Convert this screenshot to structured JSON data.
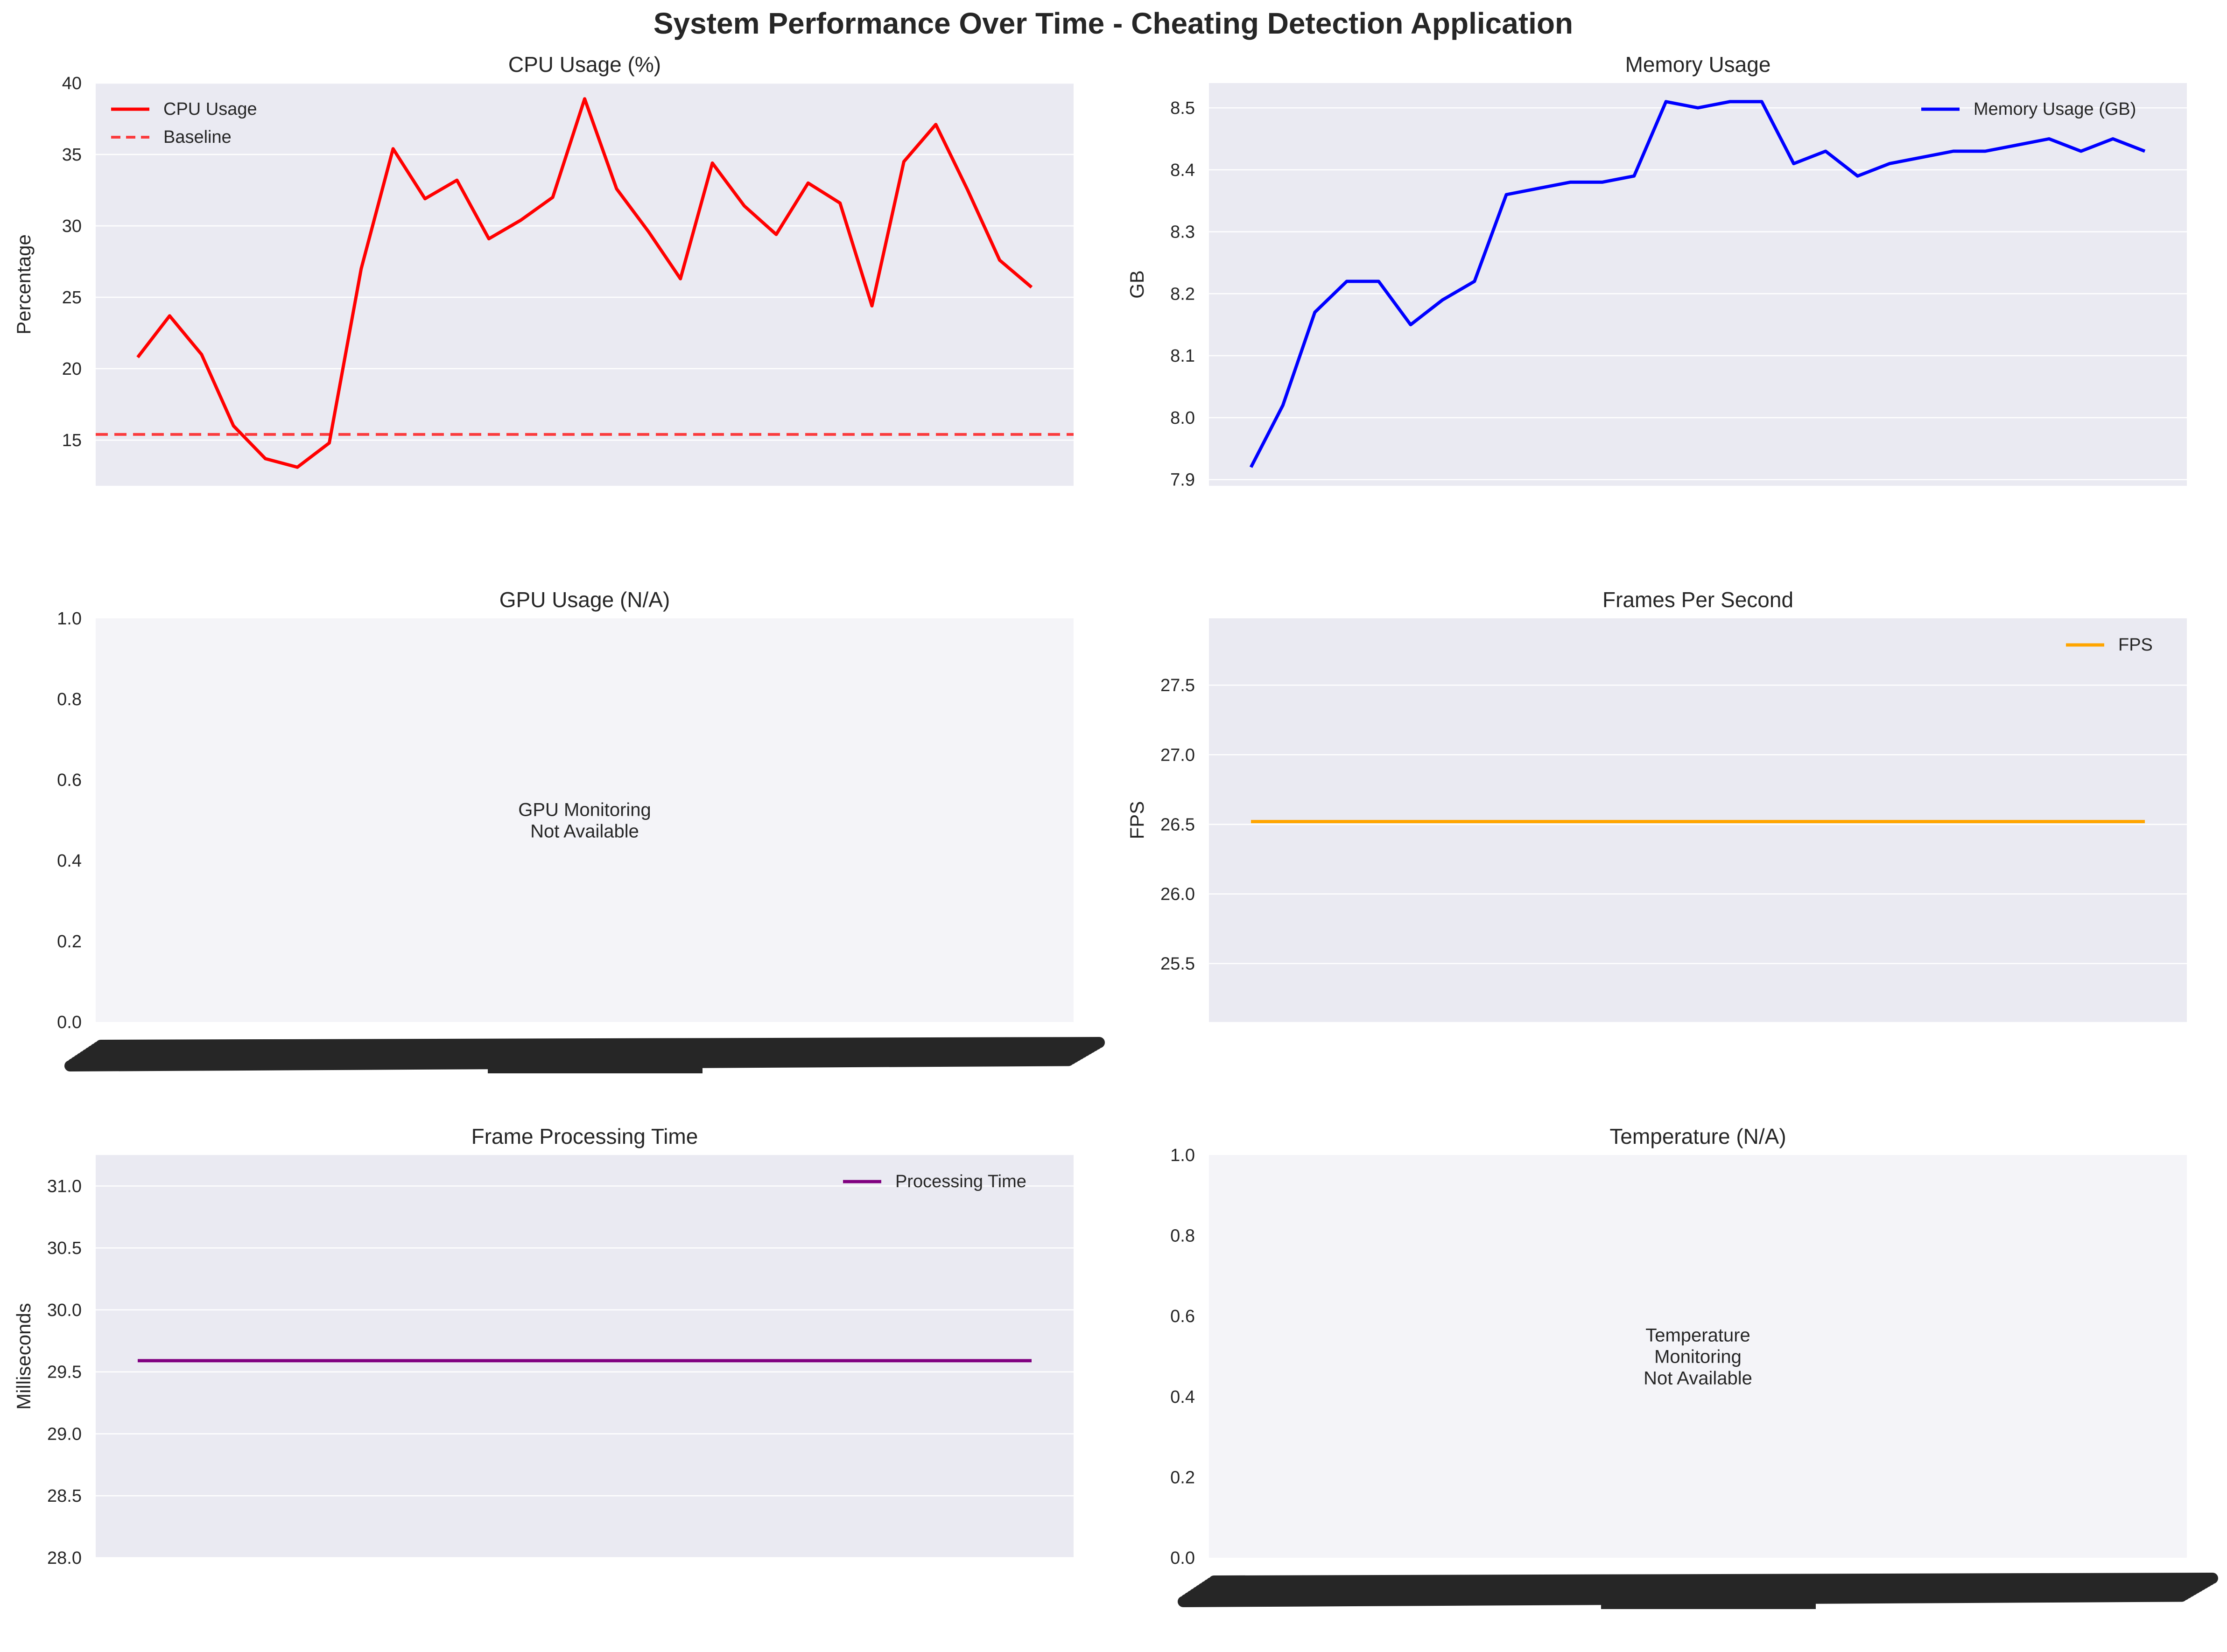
{
  "figure": {
    "title": "System Performance Over Time - Cheating Detection Application",
    "colors": {
      "axes_bg": "#eaeaf2",
      "na_bg": "#f4f4f8",
      "grid": "#ffffff",
      "scribble": "#262626"
    }
  },
  "chart_data": [
    {
      "id": "cpu",
      "type": "line",
      "title": "CPU Usage (%)",
      "xlabel": "",
      "ylabel": "Percentage",
      "ylim": [
        11.8,
        40
      ],
      "yticks": [
        15,
        20,
        25,
        30,
        35,
        40
      ],
      "ytick_labels": [
        "15",
        "20",
        "25",
        "30",
        "35",
        "40"
      ],
      "grid": true,
      "legend": "top-left",
      "n_points": 29,
      "series": [
        {
          "name": "CPU Usage",
          "color": "#ff0000",
          "style": "solid",
          "values": [
            20.8,
            23.7,
            21.0,
            16.0,
            13.7,
            13.1,
            14.8,
            27.0,
            35.4,
            31.9,
            33.2,
            29.1,
            30.4,
            32.0,
            38.9,
            32.6,
            29.6,
            26.3,
            34.4,
            31.4,
            29.4,
            33.0,
            31.6,
            24.4,
            34.5,
            37.1,
            32.5,
            27.6,
            25.7
          ]
        },
        {
          "name": "Baseline",
          "color": "#ff0000",
          "style": "dashed",
          "constant": 15.4
        }
      ]
    },
    {
      "id": "mem",
      "type": "line",
      "title": "Memory Usage",
      "xlabel": "",
      "ylabel": "GB",
      "ylim": [
        7.89,
        8.54
      ],
      "yticks": [
        7.9,
        8.0,
        8.1,
        8.2,
        8.3,
        8.4,
        8.5
      ],
      "ytick_labels": [
        "7.9",
        "8.0",
        "8.1",
        "8.2",
        "8.3",
        "8.4",
        "8.5"
      ],
      "grid": true,
      "legend": "top-right",
      "n_points": 29,
      "series": [
        {
          "name": "Memory Usage (GB)",
          "color": "#0000ff",
          "style": "solid",
          "values": [
            7.92,
            8.02,
            8.17,
            8.22,
            8.22,
            8.15,
            8.19,
            8.22,
            8.36,
            8.37,
            8.38,
            8.38,
            8.39,
            8.51,
            8.5,
            8.51,
            8.51,
            8.41,
            8.43,
            8.39,
            8.41,
            8.42,
            8.43,
            8.43,
            8.44,
            8.45,
            8.43,
            8.45,
            8.43
          ]
        }
      ]
    },
    {
      "id": "gpu",
      "type": "line",
      "title": "GPU Usage (N/A)",
      "xlabel": "",
      "ylabel": "",
      "ylim": [
        0,
        1
      ],
      "yticks": [
        0,
        0.2,
        0.4,
        0.6,
        0.8,
        1.0
      ],
      "ytick_labels": [
        "0.0",
        "0.2",
        "0.4",
        "0.6",
        "0.8",
        "1.0"
      ],
      "grid": false,
      "not_available": true,
      "message": [
        "GPU Monitoring",
        "Not Available"
      ],
      "series": []
    },
    {
      "id": "fps",
      "type": "line",
      "title": "Frames Per Second",
      "xlabel": "",
      "ylabel": "FPS",
      "ylim": [
        25.08,
        27.98
      ],
      "yticks": [
        25.5,
        26.0,
        26.5,
        27.0,
        27.5
      ],
      "ytick_labels": [
        "25.5",
        "26.0",
        "26.5",
        "27.0",
        "27.5"
      ],
      "grid": true,
      "legend": "top-right",
      "n_points": 29,
      "series": [
        {
          "name": "FPS",
          "color": "#ffa500",
          "style": "solid",
          "constant": 26.52
        }
      ]
    },
    {
      "id": "proc",
      "type": "line",
      "title": "Frame Processing Time",
      "xlabel": "",
      "ylabel": "Milliseconds",
      "ylim": [
        28.0,
        31.25
      ],
      "yticks": [
        28.0,
        28.5,
        29.0,
        29.5,
        30.0,
        30.5,
        31.0
      ],
      "ytick_labels": [
        "28.0",
        "28.5",
        "29.0",
        "29.5",
        "30.0",
        "30.5",
        "31.0"
      ],
      "grid": true,
      "legend": "top-right",
      "n_points": 29,
      "series": [
        {
          "name": "Processing Time",
          "color": "#800080",
          "style": "solid",
          "constant": 29.59
        }
      ]
    },
    {
      "id": "temp",
      "type": "line",
      "title": "Temperature (N/A)",
      "xlabel": "",
      "ylabel": "",
      "ylim": [
        0,
        1
      ],
      "yticks": [
        0,
        0.2,
        0.4,
        0.6,
        0.8,
        1.0
      ],
      "ytick_labels": [
        "0.0",
        "0.2",
        "0.4",
        "0.6",
        "0.8",
        "1.0"
      ],
      "grid": false,
      "not_available": true,
      "message": [
        "Temperature",
        "Monitoring",
        "Not Available"
      ],
      "series": []
    }
  ]
}
